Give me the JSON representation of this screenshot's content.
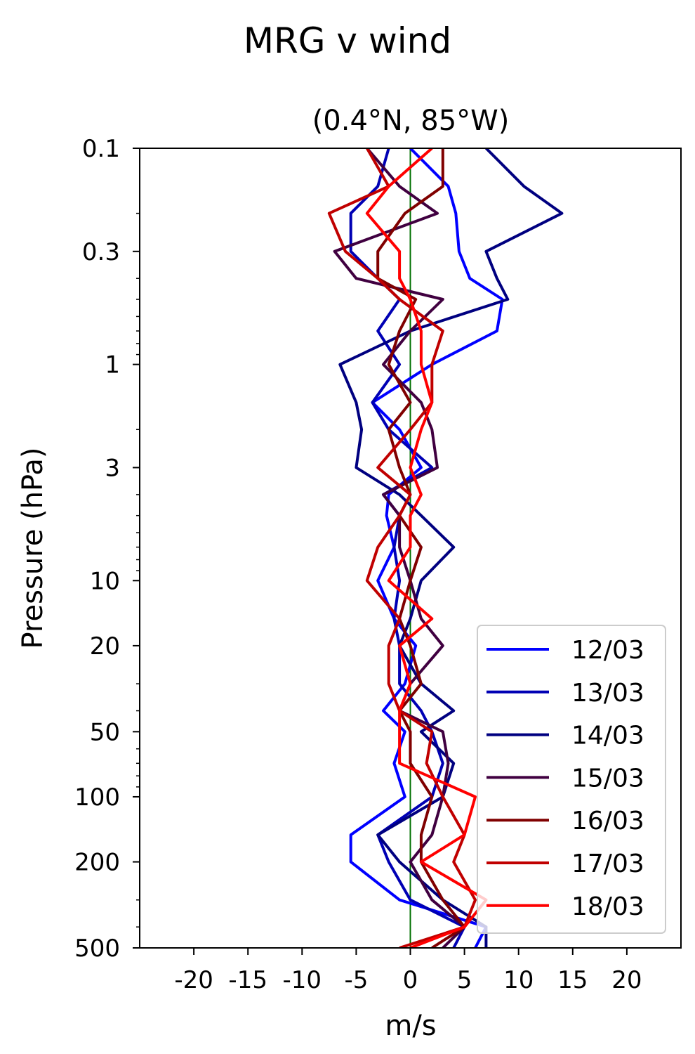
{
  "chart_data": {
    "type": "line",
    "suptitle": "MRG v wind",
    "title": "(0.4°N, 85°W)",
    "xlabel": "m/s",
    "ylabel": "Pressure (hPa)",
    "xlim": [
      -25,
      25
    ],
    "ylim": [
      500,
      0.1
    ],
    "yscale": "log",
    "xticks": [
      -20,
      -15,
      -10,
      -5,
      0,
      5,
      10,
      15,
      20
    ],
    "xtick_labels": [
      "-20",
      "-15",
      "-10",
      "-5",
      "0",
      "5",
      "10",
      "15",
      "20"
    ],
    "yticks": [
      0.1,
      0.3,
      1,
      3,
      10,
      20,
      50,
      100,
      200,
      500
    ],
    "ytick_labels": [
      "0.1",
      "0.3",
      "1",
      "3",
      "10",
      "20",
      "50",
      "100",
      "200",
      "500"
    ],
    "zero_line_color": "#007000",
    "legend_position": "lower-right",
    "pressure": [
      0.1,
      0.15,
      0.2,
      0.3,
      0.4,
      0.5,
      0.7,
      1,
      1.5,
      2,
      3,
      4,
      5,
      7,
      10,
      15,
      20,
      30,
      40,
      50,
      70,
      100,
      150,
      200,
      300,
      400,
      500
    ],
    "series": [
      {
        "name": "12/03",
        "color": "#0000ff",
        "values": [
          0,
          3.5,
          4.2,
          4.5,
          5.5,
          8.5,
          8,
          2,
          -3.5,
          -1,
          1,
          -2,
          -2.2,
          -1.5,
          -3,
          -1.5,
          0.5,
          -0.5,
          -2.5,
          -0.5,
          -1.5,
          -0.5,
          -5.5,
          -5.5,
          -1,
          7,
          6
        ]
      },
      {
        "name": "13/03",
        "color": "#0000b4",
        "values": [
          -2,
          -3,
          -5.5,
          -5.5,
          -3,
          -1,
          -3,
          -1,
          -3.5,
          -2,
          2,
          -2.5,
          -1,
          -1.5,
          -1,
          -1.5,
          -1,
          -1,
          1,
          2,
          3,
          2,
          -3,
          -2,
          0,
          5,
          4
        ]
      },
      {
        "name": "14/03",
        "color": "#000080",
        "values": [
          7,
          10.5,
          14,
          7,
          8,
          9,
          0,
          -6.5,
          -5,
          -4.5,
          -5,
          -1,
          1,
          4,
          1,
          0,
          -1,
          1,
          4,
          1,
          4,
          3,
          -3,
          -1,
          3,
          7,
          7
        ]
      },
      {
        "name": "15/03",
        "color": "#400040",
        "values": [
          -4,
          -1,
          2.5,
          -7,
          -5,
          3,
          0,
          -2.5,
          1,
          2,
          2.5,
          -2.5,
          -1,
          -1,
          0,
          1,
          3,
          0,
          -1,
          3,
          3.5,
          3,
          2,
          0,
          2,
          5,
          3
        ]
      },
      {
        "name": "16/03",
        "color": "#800000",
        "values": [
          3,
          3,
          -0.5,
          -3,
          -3,
          0.5,
          -1,
          -2,
          0,
          -2,
          -1,
          0,
          -1,
          1,
          0,
          -1,
          0,
          1,
          -1,
          0,
          0,
          2,
          1,
          1,
          3,
          5,
          2
        ]
      },
      {
        "name": "17/03",
        "color": "#c00000",
        "values": [
          -4,
          -2,
          -7.5,
          -6,
          -3,
          -1,
          3,
          2,
          2,
          0,
          -3,
          0,
          -1,
          -3,
          -4,
          -1,
          -2,
          -2,
          -1,
          2,
          1.5,
          3,
          5,
          4,
          6,
          5,
          -1
        ]
      },
      {
        "name": "18/03",
        "color": "#ff0000",
        "values": [
          2,
          -2,
          -4,
          -1,
          -1,
          0,
          1,
          1,
          2,
          1,
          0,
          1,
          0,
          0,
          -2,
          2,
          -1,
          0,
          -1,
          -1,
          -1,
          6,
          5,
          1,
          7,
          5,
          0
        ]
      }
    ]
  }
}
